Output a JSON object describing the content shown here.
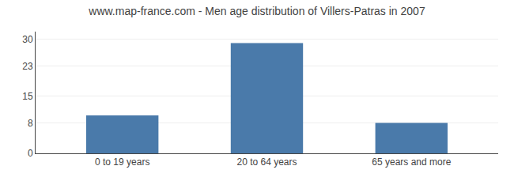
{
  "chart_data": {
    "type": "bar",
    "title": "www.map-france.com - Men age distribution of Villers-Patras in 2007",
    "categories": [
      "0 to 19 years",
      "20 to 64 years",
      "65 years and more"
    ],
    "values": [
      10,
      29,
      8
    ],
    "color": "#4a7aaa",
    "ylim": [
      0,
      32
    ],
    "yticks": [
      0,
      8,
      15,
      23,
      30
    ],
    "grid": true
  }
}
